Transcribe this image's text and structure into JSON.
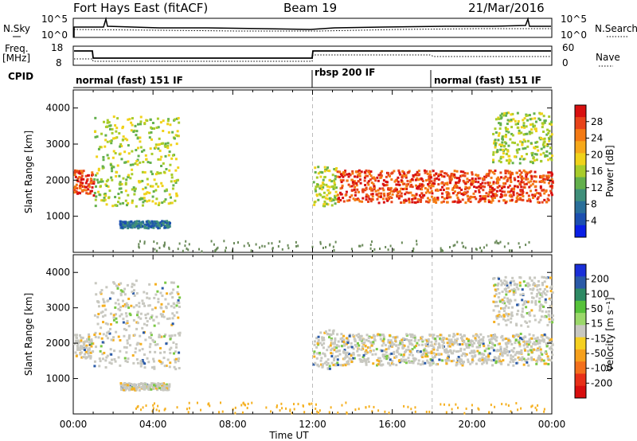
{
  "header": {
    "title": "Fort Hays East (fitACF)",
    "beam": "Beam 19",
    "date": "21/Mar/2016"
  },
  "strips": {
    "nsky_label": "N.Sky",
    "nsearch_label": "N.Search",
    "nsky_ticks": [
      "10^5",
      "10^0"
    ],
    "nsearch_ticks": [
      "10^5",
      "10^0"
    ],
    "freq_label": "Freq.",
    "freq_unit": "[MHz]",
    "freq_ticks": [
      "18",
      "8"
    ],
    "nave_label": "Nave",
    "nave_ticks": [
      "60",
      "0"
    ],
    "cpid_label": "CPID",
    "cpid_modes": [
      "normal (fast) 151 IF",
      "rbsp 200 IF",
      "normal (fast) 151 IF"
    ]
  },
  "chart_data": [
    {
      "type": "heatmap",
      "name": "power_panel",
      "ylabel": "Slant Range [km]",
      "yticks": [
        "1000",
        "2000",
        "3000",
        "4000"
      ],
      "ylim": [
        0,
        4500
      ],
      "colorbar": {
        "label": "Power [dB]",
        "ticks": [
          "4",
          "8",
          "12",
          "16",
          "20",
          "24",
          "28"
        ],
        "colors": [
          "#0a1fe6",
          "#1c4fb0",
          "#2a6f9a",
          "#3f8f7a",
          "#63b04c",
          "#a8cc2a",
          "#f0d21a",
          "#f6a81a",
          "#f47a14",
          "#e8431a",
          "#d81010"
        ]
      },
      "echo_bands": [
        {
          "t": [
            0.0,
            1.0
          ],
          "range": [
            1600,
            2300
          ],
          "level": "strong"
        },
        {
          "t": [
            1.0,
            5.3
          ],
          "range": [
            1300,
            3800
          ],
          "level": "medium"
        },
        {
          "t": [
            2.3,
            4.8
          ],
          "range": [
            700,
            900
          ],
          "level": "weak"
        },
        {
          "t": [
            12.0,
            13.2
          ],
          "range": [
            1300,
            2400
          ],
          "level": "medium"
        },
        {
          "t": [
            13.2,
            24.0
          ],
          "range": [
            1400,
            2300
          ],
          "level": "strong"
        },
        {
          "t": [
            21.0,
            24.0
          ],
          "range": [
            2500,
            3900
          ],
          "level": "medium"
        }
      ]
    },
    {
      "type": "heatmap",
      "name": "velocity_panel",
      "ylabel": "Slant Range [km]",
      "yticks": [
        "1000",
        "2000",
        "3000",
        "4000"
      ],
      "ylim": [
        0,
        4500
      ],
      "colorbar": {
        "label": "Velocity [m s⁻¹]",
        "ticks": [
          "200",
          "100",
          "50",
          "15",
          "-15",
          "-50",
          "-100",
          "-200"
        ],
        "colors": [
          "#1a2fd8",
          "#2a5aa8",
          "#2e8a64",
          "#56c23a",
          "#9bd86a",
          "#c8c8c0",
          "#f5d020",
          "#f6a01c",
          "#f3701c",
          "#e83018",
          "#d80e0e"
        ]
      },
      "xlabel": "Time UT",
      "xticks": [
        "00:00",
        "04:00",
        "08:00",
        "12:00",
        "16:00",
        "20:00",
        "00:00"
      ],
      "xlim": [
        0,
        24
      ]
    }
  ]
}
